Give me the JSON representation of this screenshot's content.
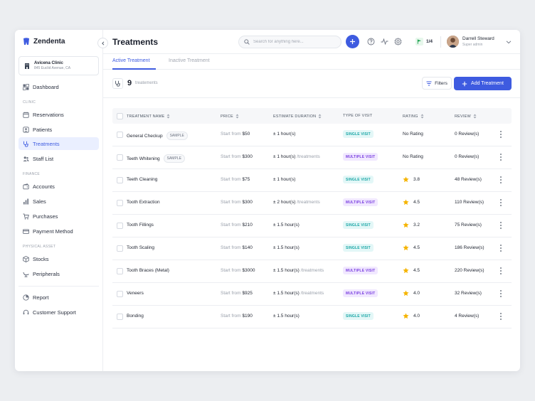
{
  "app": {
    "name": "Zendenta"
  },
  "clinic": {
    "name": "Avicena Clinic",
    "address": "845 Euclid Avenue, CA"
  },
  "sidebar": {
    "dashboard": "Dashboard",
    "section_clinic": "CLINIC",
    "reservations": "Reservations",
    "patients": "Patients",
    "treatments": "Treatments",
    "staff_list": "Staff List",
    "section_finance": "FINANCE",
    "accounts": "Accounts",
    "sales": "Sales",
    "purchases": "Purchases",
    "payment_method": "Payment Method",
    "section_asset": "PHYSICAL ASSET",
    "stocks": "Stocks",
    "peripherals": "Peripherals",
    "report": "Report",
    "customer_support": "Customer Support"
  },
  "header": {
    "title": "Treatments",
    "search_placeholder": "Search for anything here...",
    "flag_count": "1/4",
    "user_name": "Darrell Steward",
    "user_role": "Super admin"
  },
  "tabs": {
    "active": "Active Treatment",
    "inactive": "Inactive Treatment"
  },
  "summary": {
    "count": "9",
    "count_label": "treatements",
    "filters_label": "Filters",
    "add_label": "Add Treatment"
  },
  "table": {
    "headers": {
      "name": "TREATMENT NAME",
      "price": "PRICE",
      "duration": "ESTIMATE DURATION",
      "visit": "TYPE OF VISIT",
      "rating": "RATING",
      "review": "REVIEW"
    },
    "price_prefix": "Start from",
    "sample_label": "SAMPLE",
    "rows": [
      {
        "name": "General Checkup",
        "sample": true,
        "price": "$50",
        "duration": "± 1 hour(s)",
        "duration_extra": "",
        "visit": "SINGLE VISIT",
        "visit_type": "single",
        "rating": "No Rating",
        "has_rating": false,
        "review": "0 Review(s)"
      },
      {
        "name": "Teeth Whitening",
        "sample": true,
        "price": "$300",
        "duration": "± 1 hour(s)",
        "duration_extra": "/treatments",
        "visit": "MULTIPLE VISIT",
        "visit_type": "multi",
        "rating": "No Rating",
        "has_rating": false,
        "review": "0 Review(s)"
      },
      {
        "name": "Teeth Cleaning",
        "sample": false,
        "price": "$75",
        "duration": "± 1 hour(s)",
        "duration_extra": "",
        "visit": "SINGLE VISIT",
        "visit_type": "single",
        "rating": "3.8",
        "has_rating": true,
        "review": "48 Review(s)"
      },
      {
        "name": "Tooth Extraction",
        "sample": false,
        "price": "$300",
        "duration": "± 2 hour(s)",
        "duration_extra": "/treatments",
        "visit": "MULTIPLE VISIT",
        "visit_type": "multi",
        "rating": "4.5",
        "has_rating": true,
        "review": "110 Review(s)"
      },
      {
        "name": "Tooth Fillings",
        "sample": false,
        "price": "$210",
        "duration": "± 1.5 hour(s)",
        "duration_extra": "",
        "visit": "SINGLE VISIT",
        "visit_type": "single",
        "rating": "3.2",
        "has_rating": true,
        "review": "75 Review(s)"
      },
      {
        "name": "Tooth Scaling",
        "sample": false,
        "price": "$140",
        "duration": "± 1.5 hour(s)",
        "duration_extra": "",
        "visit": "SINGLE VISIT",
        "visit_type": "single",
        "rating": "4.5",
        "has_rating": true,
        "review": "186 Review(s)"
      },
      {
        "name": "Tooth Braces (Metal)",
        "sample": false,
        "price": "$3000",
        "duration": "± 1.5 hour(s)",
        "duration_extra": "/treatments",
        "visit": "MULTIPLE VISIT",
        "visit_type": "multi",
        "rating": "4.5",
        "has_rating": true,
        "review": "220 Review(s)"
      },
      {
        "name": "Veneers",
        "sample": false,
        "price": "$925",
        "duration": "± 1.5 hour(s)",
        "duration_extra": "/treatments",
        "visit": "MULTIPLE VISIT",
        "visit_type": "multi",
        "rating": "4.0",
        "has_rating": true,
        "review": "32 Review(s)"
      },
      {
        "name": "Bonding",
        "sample": false,
        "price": "$190",
        "duration": "± 1.5 hour(s)",
        "duration_extra": "",
        "visit": "SINGLE VISIT",
        "visit_type": "single",
        "rating": "4.0",
        "has_rating": true,
        "review": "4 Review(s)"
      }
    ]
  },
  "colors": {
    "accent": "#3e5be0",
    "single_visit": "#1aa6a6",
    "multi_visit": "#7a3fe0",
    "star": "#f5b400"
  }
}
